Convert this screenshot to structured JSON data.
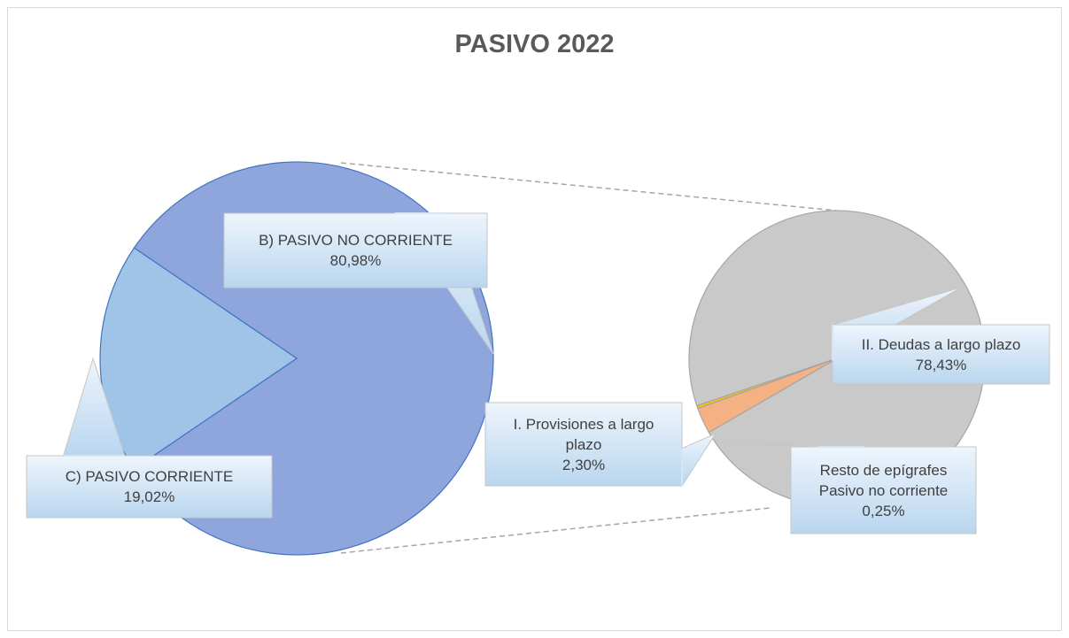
{
  "chart_data": {
    "type": "pie-of-pie",
    "title": "PASIVO 2022",
    "categories": [
      "B) PASIVO NO CORRIENTE",
      "C) PASIVO CORRIENTE"
    ],
    "values": [
      80.98,
      19.02
    ],
    "value_labels": [
      "80,98%",
      "19,02%"
    ],
    "colors": [
      "#8fa6dd",
      "#9fc4e8"
    ],
    "secondary": {
      "categories": [
        "II. Deudas a largo plazo",
        "I. Provisiones a largo plazo",
        "Resto de epígrafes Pasivo no corriente"
      ],
      "values": [
        78.43,
        2.3,
        0.25
      ],
      "value_labels": [
        "78,43%",
        "2,30%",
        "0,25%"
      ],
      "colors": [
        "#c9c9c9",
        "#f4b183",
        "#ffc000"
      ]
    }
  }
}
